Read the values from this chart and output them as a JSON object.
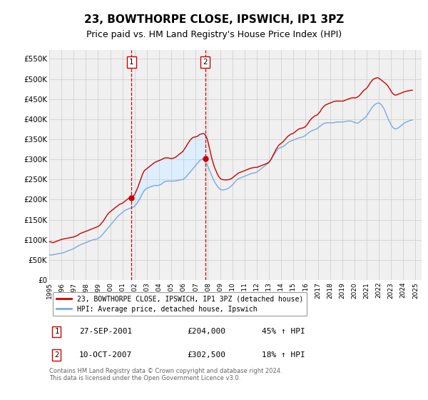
{
  "title": "23, BOWTHORPE CLOSE, IPSWICH, IP1 3PZ",
  "subtitle": "Price paid vs. HM Land Registry's House Price Index (HPI)",
  "title_fontsize": 11,
  "subtitle_fontsize": 9,
  "xlim_start": 1995.0,
  "xlim_end": 2025.5,
  "ylim_min": 0,
  "ylim_max": 572000,
  "yticks": [
    0,
    50000,
    100000,
    150000,
    200000,
    250000,
    300000,
    350000,
    400000,
    450000,
    500000,
    550000
  ],
  "ytick_labels": [
    "£0",
    "£50K",
    "£100K",
    "£150K",
    "£200K",
    "£250K",
    "£300K",
    "£350K",
    "£400K",
    "£450K",
    "£500K",
    "£550K"
  ],
  "transaction1_x": 2001.74,
  "transaction1_y": 204000,
  "transaction2_x": 2007.78,
  "transaction2_y": 302500,
  "vline1_x": 2001.74,
  "vline2_x": 2007.78,
  "red_line_color": "#cc0000",
  "blue_line_color": "#7aaadd",
  "shade_color": "#ddeeff",
  "vline_color": "#cc0000",
  "background_color": "#ffffff",
  "plot_bg_color": "#f0f0f0",
  "grid_color": "#cccccc",
  "legend_label_red": "23, BOWTHORPE CLOSE, IPSWICH, IP1 3PZ (detached house)",
  "legend_label_blue": "HPI: Average price, detached house, Ipswich",
  "transaction1_label": "27-SEP-2001",
  "transaction1_price": "£204,000",
  "transaction1_hpi": "45% ↑ HPI",
  "transaction2_label": "10-OCT-2007",
  "transaction2_price": "£302,500",
  "transaction2_hpi": "18% ↑ HPI",
  "footnote": "Contains HM Land Registry data © Crown copyright and database right 2024.\nThis data is licensed under the Open Government Licence v3.0.",
  "hpi_years": [
    1995.0,
    1995.08,
    1995.17,
    1995.25,
    1995.33,
    1995.42,
    1995.5,
    1995.58,
    1995.67,
    1995.75,
    1995.83,
    1995.92,
    1996.0,
    1996.08,
    1996.17,
    1996.25,
    1996.33,
    1996.42,
    1996.5,
    1996.58,
    1996.67,
    1996.75,
    1996.83,
    1996.92,
    1997.0,
    1997.08,
    1997.17,
    1997.25,
    1997.33,
    1997.42,
    1997.5,
    1997.58,
    1997.67,
    1997.75,
    1997.83,
    1997.92,
    1998.0,
    1998.08,
    1998.17,
    1998.25,
    1998.33,
    1998.42,
    1998.5,
    1998.58,
    1998.67,
    1998.75,
    1998.83,
    1998.92,
    1999.0,
    1999.08,
    1999.17,
    1999.25,
    1999.33,
    1999.42,
    1999.5,
    1999.58,
    1999.67,
    1999.75,
    1999.83,
    1999.92,
    2000.0,
    2000.08,
    2000.17,
    2000.25,
    2000.33,
    2000.42,
    2000.5,
    2000.58,
    2000.67,
    2000.75,
    2000.83,
    2000.92,
    2001.0,
    2001.08,
    2001.17,
    2001.25,
    2001.33,
    2001.42,
    2001.5,
    2001.58,
    2001.67,
    2001.75,
    2001.83,
    2001.92,
    2002.0,
    2002.08,
    2002.17,
    2002.25,
    2002.33,
    2002.42,
    2002.5,
    2002.58,
    2002.67,
    2002.75,
    2002.83,
    2002.92,
    2003.0,
    2003.08,
    2003.17,
    2003.25,
    2003.33,
    2003.42,
    2003.5,
    2003.58,
    2003.67,
    2003.75,
    2003.83,
    2003.92,
    2004.0,
    2004.08,
    2004.17,
    2004.25,
    2004.33,
    2004.42,
    2004.5,
    2004.58,
    2004.67,
    2004.75,
    2004.83,
    2004.92,
    2005.0,
    2005.08,
    2005.17,
    2005.25,
    2005.33,
    2005.42,
    2005.5,
    2005.58,
    2005.67,
    2005.75,
    2005.83,
    2005.92,
    2006.0,
    2006.08,
    2006.17,
    2006.25,
    2006.33,
    2006.42,
    2006.5,
    2006.58,
    2006.67,
    2006.75,
    2006.83,
    2006.92,
    2007.0,
    2007.08,
    2007.17,
    2007.25,
    2007.33,
    2007.42,
    2007.5,
    2007.58,
    2007.67,
    2007.75,
    2007.83,
    2007.92,
    2008.0,
    2008.08,
    2008.17,
    2008.25,
    2008.33,
    2008.42,
    2008.5,
    2008.58,
    2008.67,
    2008.75,
    2008.83,
    2008.92,
    2009.0,
    2009.08,
    2009.17,
    2009.25,
    2009.33,
    2009.42,
    2009.5,
    2009.58,
    2009.67,
    2009.75,
    2009.83,
    2009.92,
    2010.0,
    2010.08,
    2010.17,
    2010.25,
    2010.33,
    2010.42,
    2010.5,
    2010.58,
    2010.67,
    2010.75,
    2010.83,
    2010.92,
    2011.0,
    2011.08,
    2011.17,
    2011.25,
    2011.33,
    2011.42,
    2011.5,
    2011.58,
    2011.67,
    2011.75,
    2011.83,
    2011.92,
    2012.0,
    2012.08,
    2012.17,
    2012.25,
    2012.33,
    2012.42,
    2012.5,
    2012.58,
    2012.67,
    2012.75,
    2012.83,
    2012.92,
    2013.0,
    2013.08,
    2013.17,
    2013.25,
    2013.33,
    2013.42,
    2013.5,
    2013.58,
    2013.67,
    2013.75,
    2013.83,
    2013.92,
    2014.0,
    2014.08,
    2014.17,
    2014.25,
    2014.33,
    2014.42,
    2014.5,
    2014.58,
    2014.67,
    2014.75,
    2014.83,
    2014.92,
    2015.0,
    2015.08,
    2015.17,
    2015.25,
    2015.33,
    2015.42,
    2015.5,
    2015.58,
    2015.67,
    2015.75,
    2015.83,
    2015.92,
    2016.0,
    2016.08,
    2016.17,
    2016.25,
    2016.33,
    2016.42,
    2016.5,
    2016.58,
    2016.67,
    2016.75,
    2016.83,
    2016.92,
    2017.0,
    2017.08,
    2017.17,
    2017.25,
    2017.33,
    2017.42,
    2017.5,
    2017.58,
    2017.67,
    2017.75,
    2017.83,
    2017.92,
    2018.0,
    2018.08,
    2018.17,
    2018.25,
    2018.33,
    2018.42,
    2018.5,
    2018.58,
    2018.67,
    2018.75,
    2018.83,
    2018.92,
    2019.0,
    2019.08,
    2019.17,
    2019.25,
    2019.33,
    2019.42,
    2019.5,
    2019.58,
    2019.67,
    2019.75,
    2019.83,
    2019.92,
    2020.0,
    2020.08,
    2020.17,
    2020.25,
    2020.33,
    2020.42,
    2020.5,
    2020.58,
    2020.67,
    2020.75,
    2020.83,
    2020.92,
    2021.0,
    2021.08,
    2021.17,
    2021.25,
    2021.33,
    2021.42,
    2021.5,
    2021.58,
    2021.67,
    2021.75,
    2021.83,
    2021.92,
    2022.0,
    2022.08,
    2022.17,
    2022.25,
    2022.33,
    2022.42,
    2022.5,
    2022.58,
    2022.67,
    2022.75,
    2022.83,
    2022.92,
    2023.0,
    2023.08,
    2023.17,
    2023.25,
    2023.33,
    2023.42,
    2023.5,
    2023.58,
    2023.67,
    2023.75,
    2023.83,
    2023.92,
    2024.0,
    2024.08,
    2024.17,
    2024.25,
    2024.33,
    2024.42,
    2024.5,
    2024.58,
    2024.67,
    2024.75
  ],
  "hpi_vals": [
    63000,
    62500,
    62000,
    62500,
    63000,
    63500,
    64000,
    64500,
    65000,
    65500,
    66000,
    66500,
    67000,
    67500,
    68000,
    69000,
    70000,
    71000,
    72000,
    73000,
    74000,
    75000,
    76000,
    77000,
    78000,
    79500,
    81000,
    82500,
    84000,
    85500,
    87000,
    88000,
    89000,
    90000,
    91000,
    92000,
    93000,
    94000,
    95000,
    96000,
    97000,
    98000,
    99000,
    100000,
    100500,
    101000,
    101500,
    102000,
    103000,
    105000,
    107000,
    109000,
    112000,
    115000,
    118000,
    121000,
    124000,
    127000,
    130000,
    133000,
    136000,
    139000,
    142000,
    145000,
    148000,
    151000,
    154000,
    157000,
    160000,
    162000,
    164000,
    166000,
    168000,
    170000,
    172000,
    174000,
    175000,
    176000,
    177000,
    178000,
    179000,
    180000,
    181000,
    182000,
    184000,
    187000,
    190000,
    194000,
    198000,
    202000,
    207000,
    212000,
    217000,
    221000,
    224000,
    226000,
    228000,
    229000,
    230000,
    231000,
    232000,
    233000,
    234000,
    234500,
    235000,
    235000,
    235000,
    235000,
    236000,
    237000,
    238000,
    240000,
    242000,
    244000,
    245000,
    245500,
    246000,
    246000,
    246000,
    246000,
    246000,
    246000,
    246000,
    246000,
    246500,
    247000,
    247500,
    248000,
    248500,
    249000,
    249500,
    250000,
    251000,
    253000,
    255000,
    258000,
    261000,
    264000,
    267000,
    270000,
    273000,
    276000,
    279000,
    282000,
    285000,
    288000,
    291000,
    294000,
    297000,
    299000,
    300000,
    300000,
    299000,
    296000,
    292000,
    287000,
    282000,
    276000,
    270000,
    264000,
    258000,
    252000,
    247000,
    242000,
    238000,
    234000,
    231000,
    228000,
    226000,
    225000,
    224000,
    224000,
    224000,
    225000,
    226000,
    227000,
    228000,
    230000,
    232000,
    234000,
    236000,
    239000,
    242000,
    245000,
    248000,
    250000,
    252000,
    253000,
    254000,
    255000,
    256000,
    257000,
    258000,
    259000,
    260000,
    261000,
    262000,
    263000,
    264000,
    265000,
    265500,
    266000,
    266500,
    267000,
    268000,
    270000,
    272000,
    274000,
    276000,
    278000,
    280000,
    282000,
    284000,
    286000,
    288000,
    290000,
    293000,
    296000,
    300000,
    304000,
    308000,
    312000,
    316000,
    320000,
    323000,
    326000,
    328000,
    329000,
    330000,
    331000,
    332000,
    334000,
    336000,
    338000,
    340000,
    342000,
    344000,
    345000,
    346000,
    347000,
    348000,
    349000,
    350000,
    351000,
    352000,
    353000,
    354000,
    354500,
    355000,
    356000,
    357000,
    358000,
    360000,
    362000,
    364000,
    366000,
    368000,
    370000,
    371000,
    372000,
    373000,
    374000,
    375000,
    376000,
    378000,
    380000,
    382000,
    384000,
    386000,
    388000,
    389000,
    390000,
    390500,
    391000,
    391000,
    391000,
    391000,
    391000,
    391000,
    391000,
    391500,
    392000,
    392500,
    393000,
    393000,
    393000,
    393000,
    393000,
    393000,
    393000,
    393500,
    394000,
    394500,
    395000,
    395500,
    395500,
    395500,
    395000,
    394000,
    393000,
    392000,
    391000,
    390500,
    390000,
    391000,
    393000,
    395000,
    397000,
    399000,
    401000,
    403000,
    405000,
    408000,
    412000,
    416000,
    420000,
    424000,
    428000,
    431000,
    434000,
    436000,
    438000,
    439000,
    440000,
    440000,
    439000,
    437000,
    434000,
    430000,
    426000,
    420000,
    414000,
    408000,
    402000,
    396000,
    391000,
    386000,
    382000,
    379000,
    377000,
    376000,
    376000,
    377000,
    378000,
    380000,
    382000,
    384000,
    386000,
    388000,
    390000,
    392000,
    393000,
    394000,
    395000,
    396000,
    397000,
    397500,
    398000
  ],
  "prop_years": [
    1995.0,
    1995.08,
    1995.17,
    1995.25,
    1995.33,
    1995.42,
    1995.5,
    1995.58,
    1995.67,
    1995.75,
    1995.83,
    1995.92,
    1996.0,
    1996.08,
    1996.17,
    1996.25,
    1996.33,
    1996.42,
    1996.5,
    1996.58,
    1996.67,
    1996.75,
    1996.83,
    1996.92,
    1997.0,
    1997.08,
    1997.17,
    1997.25,
    1997.33,
    1997.42,
    1997.5,
    1997.58,
    1997.67,
    1997.75,
    1997.83,
    1997.92,
    1998.0,
    1998.08,
    1998.17,
    1998.25,
    1998.33,
    1998.42,
    1998.5,
    1998.58,
    1998.67,
    1998.75,
    1998.83,
    1998.92,
    1999.0,
    1999.08,
    1999.17,
    1999.25,
    1999.33,
    1999.42,
    1999.5,
    1999.58,
    1999.67,
    1999.75,
    1999.83,
    1999.92,
    2000.0,
    2000.08,
    2000.17,
    2000.25,
    2000.33,
    2000.42,
    2000.5,
    2000.58,
    2000.67,
    2000.75,
    2000.83,
    2000.92,
    2001.0,
    2001.08,
    2001.17,
    2001.25,
    2001.33,
    2001.42,
    2001.5,
    2001.58,
    2001.67,
    2001.75,
    2001.83,
    2001.92,
    2002.0,
    2002.08,
    2002.17,
    2002.25,
    2002.33,
    2002.42,
    2002.5,
    2002.58,
    2002.67,
    2002.75,
    2002.83,
    2002.92,
    2003.0,
    2003.08,
    2003.17,
    2003.25,
    2003.33,
    2003.42,
    2003.5,
    2003.58,
    2003.67,
    2003.75,
    2003.83,
    2003.92,
    2004.0,
    2004.08,
    2004.17,
    2004.25,
    2004.33,
    2004.42,
    2004.5,
    2004.58,
    2004.67,
    2004.75,
    2004.83,
    2004.92,
    2005.0,
    2005.08,
    2005.17,
    2005.25,
    2005.33,
    2005.42,
    2005.5,
    2005.58,
    2005.67,
    2005.75,
    2005.83,
    2005.92,
    2006.0,
    2006.08,
    2006.17,
    2006.25,
    2006.33,
    2006.42,
    2006.5,
    2006.58,
    2006.67,
    2006.75,
    2006.83,
    2006.92,
    2007.0,
    2007.08,
    2007.17,
    2007.25,
    2007.33,
    2007.42,
    2007.5,
    2007.58,
    2007.67,
    2007.75,
    2007.83,
    2007.92,
    2008.0,
    2008.08,
    2008.17,
    2008.25,
    2008.33,
    2008.42,
    2008.5,
    2008.58,
    2008.67,
    2008.75,
    2008.83,
    2008.92,
    2009.0,
    2009.08,
    2009.17,
    2009.25,
    2009.33,
    2009.42,
    2009.5,
    2009.58,
    2009.67,
    2009.75,
    2009.83,
    2009.92,
    2010.0,
    2010.08,
    2010.17,
    2010.25,
    2010.33,
    2010.42,
    2010.5,
    2010.58,
    2010.67,
    2010.75,
    2010.83,
    2010.92,
    2011.0,
    2011.08,
    2011.17,
    2011.25,
    2011.33,
    2011.42,
    2011.5,
    2011.58,
    2011.67,
    2011.75,
    2011.83,
    2011.92,
    2012.0,
    2012.08,
    2012.17,
    2012.25,
    2012.33,
    2012.42,
    2012.5,
    2012.58,
    2012.67,
    2012.75,
    2012.83,
    2012.92,
    2013.0,
    2013.08,
    2013.17,
    2013.25,
    2013.33,
    2013.42,
    2013.5,
    2013.58,
    2013.67,
    2013.75,
    2013.83,
    2013.92,
    2014.0,
    2014.08,
    2014.17,
    2014.25,
    2014.33,
    2014.42,
    2014.5,
    2014.58,
    2014.67,
    2014.75,
    2014.83,
    2014.92,
    2015.0,
    2015.08,
    2015.17,
    2015.25,
    2015.33,
    2015.42,
    2015.5,
    2015.58,
    2015.67,
    2015.75,
    2015.83,
    2015.92,
    2016.0,
    2016.08,
    2016.17,
    2016.25,
    2016.33,
    2016.42,
    2016.5,
    2016.58,
    2016.67,
    2016.75,
    2016.83,
    2016.92,
    2017.0,
    2017.08,
    2017.17,
    2017.25,
    2017.33,
    2017.42,
    2017.5,
    2017.58,
    2017.67,
    2017.75,
    2017.83,
    2017.92,
    2018.0,
    2018.08,
    2018.17,
    2018.25,
    2018.33,
    2018.42,
    2018.5,
    2018.58,
    2018.67,
    2018.75,
    2018.83,
    2018.92,
    2019.0,
    2019.08,
    2019.17,
    2019.25,
    2019.33,
    2019.42,
    2019.5,
    2019.58,
    2019.67,
    2019.75,
    2019.83,
    2019.92,
    2020.0,
    2020.08,
    2020.17,
    2020.25,
    2020.33,
    2020.42,
    2020.5,
    2020.58,
    2020.67,
    2020.75,
    2020.83,
    2020.92,
    2021.0,
    2021.08,
    2021.17,
    2021.25,
    2021.33,
    2021.42,
    2021.5,
    2021.58,
    2021.67,
    2021.75,
    2021.83,
    2021.92,
    2022.0,
    2022.08,
    2022.17,
    2022.25,
    2022.33,
    2022.42,
    2022.5,
    2022.58,
    2022.67,
    2022.75,
    2022.83,
    2022.92,
    2023.0,
    2023.08,
    2023.17,
    2023.25,
    2023.33,
    2023.42,
    2023.5,
    2023.58,
    2023.67,
    2023.75,
    2023.83,
    2023.92,
    2024.0,
    2024.08,
    2024.17,
    2024.25,
    2024.33,
    2024.42,
    2024.5,
    2024.58,
    2024.67,
    2024.75
  ],
  "prop_vals": [
    95000,
    95500,
    94000,
    93500,
    93000,
    94000,
    95000,
    96000,
    97000,
    98000,
    99000,
    100000,
    101000,
    101500,
    102000,
    102500,
    103000,
    103500,
    104000,
    104500,
    105000,
    105500,
    106000,
    106500,
    107000,
    108000,
    109000,
    110000,
    111000,
    113000,
    115000,
    116000,
    117000,
    118000,
    119000,
    120000,
    121000,
    122000,
    123000,
    124000,
    125000,
    126000,
    127000,
    128000,
    129000,
    130000,
    131000,
    132000,
    133000,
    135000,
    137000,
    140000,
    143000,
    146000,
    150000,
    154000,
    158000,
    162000,
    165000,
    168000,
    170000,
    172000,
    174000,
    176000,
    178000,
    180000,
    182000,
    184000,
    186000,
    188000,
    189000,
    190000,
    191000,
    193000,
    195000,
    197000,
    199000,
    201000,
    203000,
    204000,
    205500,
    207000,
    208000,
    210000,
    213000,
    218000,
    224000,
    230000,
    237000,
    244000,
    251000,
    258000,
    265000,
    270000,
    273000,
    275000,
    277000,
    279000,
    281000,
    283000,
    285000,
    287000,
    289000,
    291000,
    293000,
    294000,
    295000,
    296000,
    297000,
    298000,
    299000,
    300000,
    302000,
    303000,
    303500,
    303500,
    304000,
    303500,
    303000,
    302500,
    302000,
    302500,
    303000,
    304000,
    305000,
    307000,
    309000,
    311000,
    313000,
    315000,
    317000,
    319000,
    322000,
    326000,
    330000,
    334000,
    338000,
    342000,
    346000,
    349000,
    352000,
    354000,
    355000,
    355500,
    356000,
    357000,
    358000,
    360000,
    362000,
    363000,
    363500,
    364000,
    364000,
    362000,
    358000,
    352000,
    344000,
    334000,
    322000,
    311000,
    301000,
    292000,
    284000,
    277000,
    271000,
    265000,
    260000,
    256000,
    253000,
    251000,
    250000,
    249500,
    249000,
    249000,
    249000,
    249000,
    249500,
    250000,
    251000,
    252000,
    254000,
    256000,
    258000,
    260000,
    262000,
    264000,
    266000,
    267000,
    268000,
    269000,
    270000,
    271000,
    272000,
    273000,
    274000,
    275000,
    276000,
    277000,
    278000,
    278500,
    279000,
    279500,
    280000,
    280000,
    280000,
    281000,
    282000,
    283000,
    284000,
    285000,
    286000,
    287000,
    288000,
    289000,
    290000,
    291000,
    293000,
    296000,
    300000,
    305000,
    310000,
    315000,
    320000,
    325000,
    329000,
    333000,
    336000,
    338000,
    340000,
    342000,
    344000,
    347000,
    350000,
    353000,
    356000,
    358000,
    360000,
    362000,
    363000,
    364000,
    365000,
    367000,
    369000,
    371000,
    373000,
    375000,
    376000,
    377000,
    377500,
    378000,
    379000,
    380000,
    382000,
    385000,
    388000,
    392000,
    396000,
    399000,
    402000,
    404000,
    406000,
    408000,
    409000,
    410000,
    412000,
    415000,
    418000,
    422000,
    426000,
    429000,
    432000,
    434000,
    436000,
    437000,
    438000,
    439000,
    440000,
    441000,
    442000,
    443000,
    444000,
    444500,
    445000,
    445000,
    445000,
    445000,
    445000,
    445000,
    445000,
    445000,
    446000,
    447000,
    448000,
    449000,
    450000,
    451000,
    452000,
    452500,
    453000,
    453000,
    453000,
    453000,
    454000,
    455000,
    457000,
    459000,
    462000,
    465000,
    468000,
    471000,
    473000,
    475000,
    477000,
    480000,
    484000,
    488000,
    492000,
    495000,
    498000,
    500000,
    501000,
    502000,
    502500,
    503000,
    502000,
    500000,
    498000,
    496000,
    494000,
    492000,
    490000,
    488000,
    485000,
    482000,
    478000,
    474000,
    470000,
    466000,
    463000,
    461000,
    460000,
    460000,
    461000,
    462000,
    463000,
    464000,
    465000,
    466000,
    467000,
    468000,
    469000,
    469500,
    470000,
    470500,
    471000,
    471500,
    472000,
    472000
  ]
}
